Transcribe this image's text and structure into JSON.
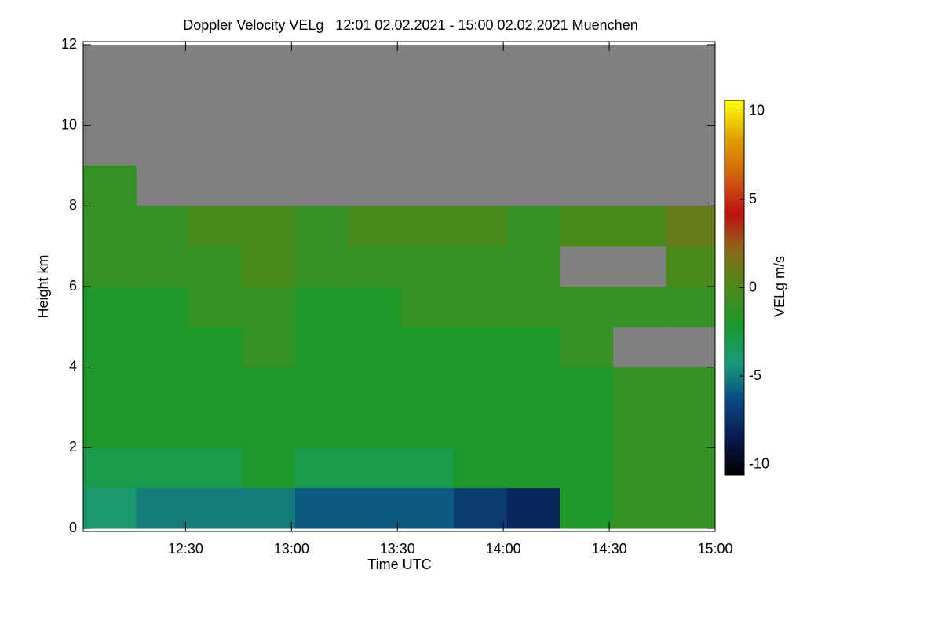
{
  "chart_data": {
    "type": "heatmap",
    "title": "Doppler Velocity VELg   12:01 02.02.2021 - 15:00 02.02.2021 Muenchen",
    "xlabel": "Time UTC",
    "ylabel": "Height km",
    "colorbar_label": "VELg m/s",
    "xlim": [
      "12:01",
      "15:00"
    ],
    "xticks": [
      "12:30",
      "13:00",
      "13:30",
      "14:00",
      "14:30",
      "15:00"
    ],
    "ylim": [
      0,
      12
    ],
    "yticks": [
      0,
      2,
      4,
      6,
      8,
      10,
      12
    ],
    "clim": [
      -10.6,
      10.6
    ],
    "cticks": [
      -10,
      -5,
      0,
      5,
      10
    ],
    "colors": [
      "#000000",
      "#0a1a50",
      "#0a4a80",
      "#1a9a7a",
      "#1a9a2a",
      "#4a8a1a",
      "#8a6a1a",
      "#c01010",
      "#d06010",
      "#e0a000",
      "#ffff00"
    ],
    "null_color": "#808080",
    "x": [
      "12:01",
      "12:16",
      "12:31",
      "12:46",
      "13:01",
      "13:16",
      "13:31",
      "13:46",
      "14:01",
      "14:16",
      "14:31",
      "14:46",
      "15:00"
    ],
    "y": [
      0,
      1,
      2,
      3,
      4,
      5,
      6,
      7,
      8,
      9,
      10,
      11,
      12
    ],
    "z": [
      [
        -4,
        -5,
        -5,
        -5,
        -6,
        -6,
        -6,
        -7,
        -8,
        -2,
        -1,
        -1
      ],
      [
        -3,
        -3,
        -3,
        -2,
        -3,
        -3,
        -3,
        -2,
        -2,
        -2,
        -1,
        -1
      ],
      [
        -2,
        -2,
        -2,
        -2,
        -2,
        -2,
        -2,
        -2,
        -2,
        -2,
        -1,
        -1
      ],
      [
        -2,
        -2,
        -2,
        -2,
        -2,
        -2,
        -2,
        -2,
        -2,
        -2,
        -1,
        -1
      ],
      [
        -2,
        -2,
        -2,
        -1,
        -2,
        -2,
        -2,
        -2,
        -2,
        -1,
        null,
        null
      ],
      [
        -2,
        -2,
        -1,
        -1,
        -2,
        -2,
        -1,
        -1,
        -1,
        -1,
        -1,
        -1
      ],
      [
        -1,
        -1,
        -1,
        0,
        -1,
        -1,
        -1,
        -1,
        -1,
        null,
        null,
        0
      ],
      [
        -1,
        -1,
        0,
        0,
        -1,
        0,
        0,
        0,
        -1,
        0,
        0,
        1
      ],
      [
        -1,
        null,
        null,
        null,
        null,
        null,
        null,
        null,
        null,
        null,
        null,
        null
      ],
      [
        null,
        null,
        null,
        null,
        null,
        null,
        null,
        null,
        null,
        null,
        null,
        null
      ],
      [
        null,
        null,
        null,
        null,
        null,
        null,
        null,
        null,
        null,
        null,
        null,
        null
      ],
      [
        null,
        null,
        null,
        null,
        null,
        null,
        null,
        null,
        null,
        null,
        null,
        null
      ]
    ]
  }
}
